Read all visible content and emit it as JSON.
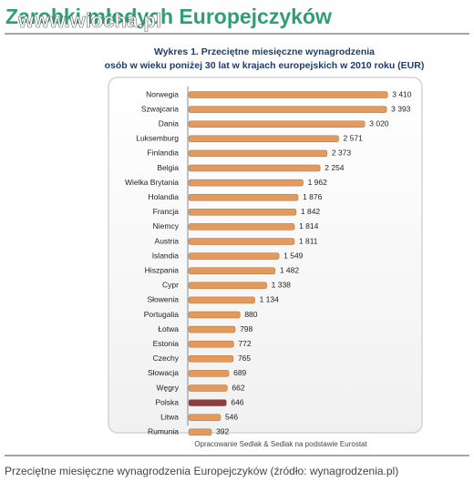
{
  "header": {
    "title": "Zarobki młodych Europejczyków",
    "watermark": "www.wiocha.pl"
  },
  "chart_data": {
    "type": "bar",
    "orientation": "horizontal",
    "title": "Wykres 1. Przeciętne miesięczne wynagrodzenia",
    "subtitle": "osób w wieku poniżej 30 lat w krajach europejskich w 2010 roku (EUR)",
    "source": "Opracowanie Sedlak & Sedlak na podstawie Eurostat",
    "categories": [
      "Norwegia",
      "Szwajcaria",
      "Dania",
      "Luksemburg",
      "Finlandia",
      "Belgia",
      "Wielka Brytania",
      "Holandia",
      "Francja",
      "Niemcy",
      "Austria",
      "Islandia",
      "Hiszpania",
      "Cypr",
      "Słowenia",
      "Portugalia",
      "Łotwa",
      "Estonia",
      "Czechy",
      "Słowacja",
      "Węgry",
      "Polska",
      "Litwa",
      "Rumunia"
    ],
    "values": [
      3410,
      3393,
      3020,
      2571,
      2373,
      2254,
      1962,
      1876,
      1842,
      1814,
      1811,
      1549,
      1482,
      1338,
      1134,
      880,
      798,
      772,
      765,
      689,
      662,
      646,
      546,
      392
    ],
    "value_labels": [
      "3 410",
      "3 393",
      "3 020",
      "2 571",
      "2 373",
      "2 254",
      "1 962",
      "1 876",
      "1 842",
      "1 814",
      "1 811",
      "1 549",
      "1 482",
      "1 338",
      "1 134",
      "880",
      "798",
      "772",
      "765",
      "689",
      "662",
      "646",
      "546",
      "392"
    ],
    "colors": [
      "#e39a5c",
      "#e39a5c",
      "#e39a5c",
      "#e39a5c",
      "#e39a5c",
      "#e39a5c",
      "#e39a5c",
      "#e39a5c",
      "#e39a5c",
      "#e39a5c",
      "#e39a5c",
      "#e39a5c",
      "#e39a5c",
      "#e39a5c",
      "#e39a5c",
      "#e39a5c",
      "#e39a5c",
      "#e39a5c",
      "#e39a5c",
      "#e39a5c",
      "#e39a5c",
      "#8e3b45",
      "#e39a5c",
      "#e39a5c"
    ],
    "xlim": [
      0,
      3500
    ]
  },
  "caption": "Przeciętne miesięczne wynagrodzenia Europejczyków (źródło: wynagrodzenia.pl)"
}
